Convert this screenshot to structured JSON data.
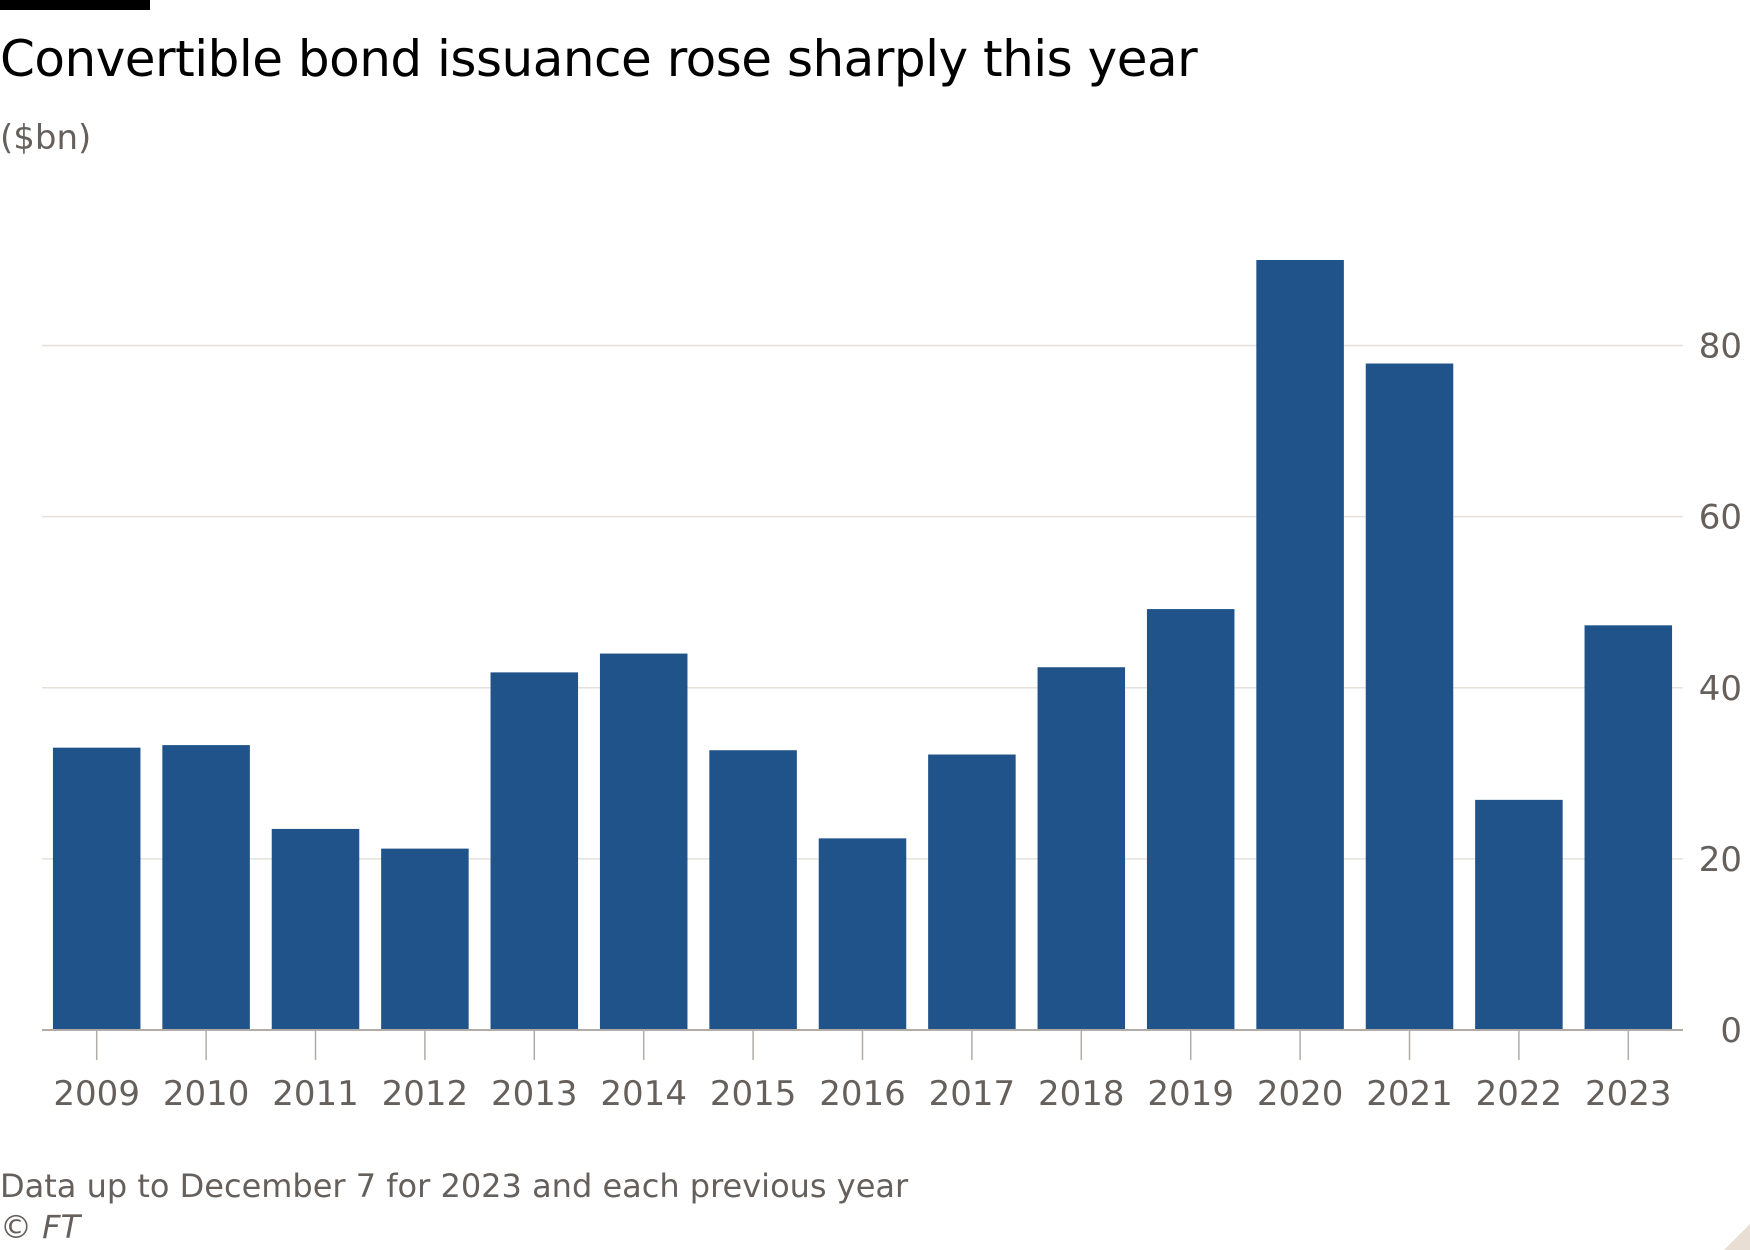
{
  "chart_data": {
    "type": "bar",
    "title": "Convertible bond issuance rose sharply this year",
    "subtitle": "($bn)",
    "categories": [
      "2009",
      "2010",
      "2011",
      "2012",
      "2013",
      "2014",
      "2015",
      "2016",
      "2017",
      "2018",
      "2019",
      "2020",
      "2021",
      "2022",
      "2023"
    ],
    "values": [
      33,
      33.3,
      23.5,
      21.2,
      41.8,
      44,
      32.7,
      22.4,
      32.2,
      42.4,
      49.2,
      90,
      77.9,
      26.9,
      47.3
    ],
    "xlabel": "",
    "ylabel": "",
    "ylim": [
      0,
      90
    ],
    "yticks": [
      0,
      20,
      40,
      60,
      80
    ],
    "y_axis_side": "right",
    "grid": true,
    "colors": {
      "bar": "#1f538a",
      "grid": "#e6e0da",
      "axis": "#b3aca6",
      "text": "#66605c"
    },
    "note": "Data up to December 7 for 2023 and each previous year",
    "source": "© FT"
  }
}
